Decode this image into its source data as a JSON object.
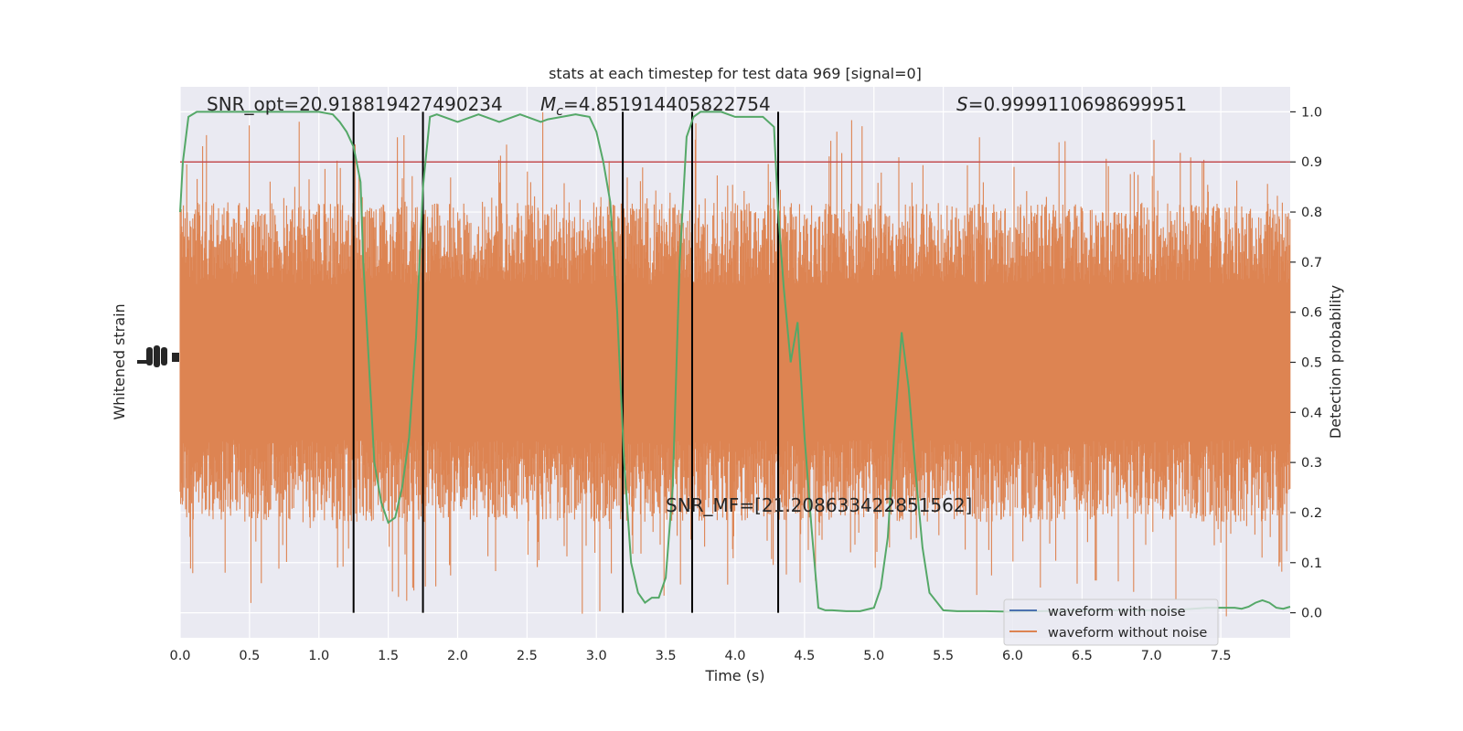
{
  "chart_data": {
    "type": "line",
    "title": "stats at each timestep for test data 969 [signal=0]",
    "xlabel": "Time (s)",
    "ylabel_left": "Whitened strain",
    "ylabel_right": "Detection probability",
    "xlim": [
      0.0,
      8.0
    ],
    "ylim_right": [
      -0.05,
      1.05
    ],
    "x_ticks": [
      "0.0",
      "0.5",
      "1.0",
      "1.5",
      "2.0",
      "2.5",
      "3.0",
      "3.5",
      "4.0",
      "4.5",
      "5.0",
      "5.5",
      "6.0",
      "6.5",
      "7.0",
      "7.5"
    ],
    "y_ticks_right": [
      "0.0",
      "0.1",
      "0.2",
      "0.3",
      "0.4",
      "0.5",
      "0.6",
      "0.7",
      "0.8",
      "0.9",
      "1.0"
    ],
    "grid": true,
    "legend_position": "lower-right",
    "colors": {
      "background": "#eaeaf2",
      "grid": "#ffffff",
      "noise": "#4c72b0",
      "strain": "#dd8452",
      "probability": "#55a868",
      "threshold": "#c44e52",
      "boundary": "#000000",
      "text": "#262626"
    },
    "annotations": {
      "snr_opt": "SNR_opt=20.918819427490234",
      "mc_symbol": "M",
      "mc_subscript": "c",
      "mc_value": "=4.851914405822754",
      "s_symbol": "S",
      "s_value": "=0.9999110698699951",
      "snr_mf": "SNR_MF=[21.208633422851562]"
    },
    "series": [
      {
        "name": "waveform with noise",
        "role": "strain-noise"
      },
      {
        "name": "waveform without noise",
        "role": "strain-clean"
      }
    ],
    "threshold": 0.9,
    "vertical_lines_x": [
      1.25,
      1.75,
      3.19,
      3.69,
      4.31
    ],
    "probability": {
      "x": [
        0.0,
        0.02,
        0.06,
        0.12,
        0.25,
        0.5,
        0.75,
        1.0,
        1.1,
        1.15,
        1.2,
        1.25,
        1.3,
        1.32,
        1.36,
        1.4,
        1.45,
        1.5,
        1.55,
        1.6,
        1.65,
        1.7,
        1.75,
        1.8,
        1.85,
        1.9,
        2.0,
        2.1,
        2.15,
        2.2,
        2.3,
        2.45,
        2.5,
        2.6,
        2.65,
        2.75,
        2.85,
        2.95,
        3.0,
        3.05,
        3.1,
        3.15,
        3.2,
        3.25,
        3.3,
        3.35,
        3.4,
        3.45,
        3.5,
        3.55,
        3.6,
        3.65,
        3.7,
        3.75,
        3.8,
        3.85,
        3.9,
        4.0,
        4.1,
        4.2,
        4.28,
        4.31,
        4.35,
        4.4,
        4.45,
        4.5,
        4.55,
        4.6,
        4.65,
        4.7,
        4.8,
        4.9,
        5.0,
        5.05,
        5.1,
        5.15,
        5.2,
        5.25,
        5.3,
        5.35,
        5.4,
        5.5,
        5.6,
        5.8,
        6.0,
        6.2,
        6.5,
        6.8,
        7.0,
        7.2,
        7.3,
        7.4,
        7.5,
        7.6,
        7.65,
        7.7,
        7.75,
        7.8,
        7.85,
        7.9,
        7.95,
        8.0
      ],
      "y": [
        0.8,
        0.9,
        0.99,
        1.0,
        1.0,
        1.0,
        1.0,
        1.0,
        0.995,
        0.98,
        0.96,
        0.93,
        0.86,
        0.7,
        0.5,
        0.3,
        0.22,
        0.18,
        0.19,
        0.25,
        0.35,
        0.55,
        0.85,
        0.99,
        0.995,
        0.99,
        0.98,
        0.99,
        0.995,
        0.99,
        0.98,
        0.995,
        0.99,
        0.98,
        0.985,
        0.99,
        0.995,
        0.99,
        0.96,
        0.9,
        0.82,
        0.6,
        0.3,
        0.1,
        0.04,
        0.02,
        0.03,
        0.03,
        0.07,
        0.25,
        0.7,
        0.95,
        0.99,
        1.0,
        1.0,
        1.0,
        1.0,
        0.99,
        0.99,
        0.99,
        0.97,
        0.8,
        0.65,
        0.5,
        0.58,
        0.35,
        0.17,
        0.01,
        0.005,
        0.005,
        0.003,
        0.003,
        0.01,
        0.05,
        0.15,
        0.37,
        0.56,
        0.45,
        0.28,
        0.13,
        0.04,
        0.005,
        0.003,
        0.003,
        0.002,
        0.003,
        0.005,
        0.005,
        0.005,
        0.006,
        0.008,
        0.01,
        0.01,
        0.01,
        0.008,
        0.012,
        0.02,
        0.025,
        0.02,
        0.01,
        0.008,
        0.012
      ]
    }
  }
}
